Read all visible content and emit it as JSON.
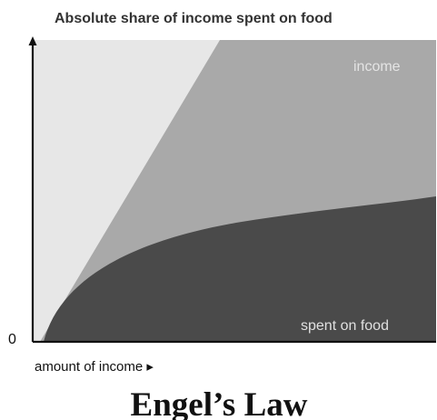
{
  "chart_data": {
    "type": "area",
    "title": "Absolute share of income spent on food",
    "xlabel": "amount of income ▸",
    "ylabel": "",
    "x_tick_labels": [
      "0"
    ],
    "series": [
      {
        "name": "income",
        "shape": "linear",
        "color": "#a9a9a9"
      },
      {
        "name": "spent on food",
        "shape": "concave, flattening",
        "color": "#4a4a4a"
      }
    ],
    "background_color": "#e7e7e7",
    "grid": false,
    "legend": "labels inside areas",
    "caption": "Engel’s Law"
  }
}
